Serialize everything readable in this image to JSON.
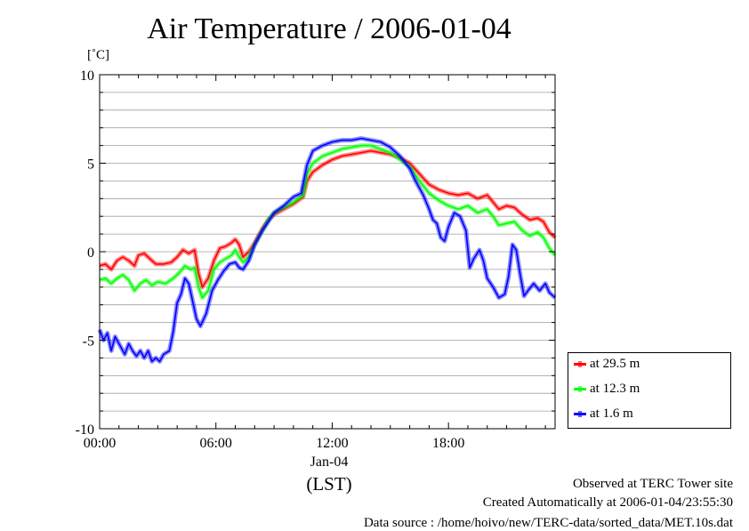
{
  "title": "Air Temperature / 2006-01-04",
  "unit_label": "[˚C]",
  "date_label": "Jan-04",
  "timezone_label": "(LST)",
  "footer": {
    "observed": "Observed at TERC Tower site",
    "created": "Created Automatically at 2006-01-04/23:55:30",
    "source": "Data source : /home/hoivo/new/TERC-data/sorted_data/MET.10s.dat"
  },
  "chart_data": {
    "type": "line",
    "title": "Air Temperature / 2006-01-04",
    "xlabel": "(LST)",
    "ylabel": "[˚C]",
    "ylim": [
      -10,
      10
    ],
    "xlim": [
      0,
      23.5
    ],
    "x_ticks": [
      {
        "value": 0,
        "label": "00:00"
      },
      {
        "value": 6,
        "label": "06:00"
      },
      {
        "value": 12,
        "label": "12:00"
      },
      {
        "value": 18,
        "label": "18:00"
      }
    ],
    "y_ticks": [
      {
        "value": 10,
        "label": "10"
      },
      {
        "value": 5,
        "label": "5"
      },
      {
        "value": 0,
        "label": "0"
      },
      {
        "value": -5,
        "label": "-5"
      },
      {
        "value": -10,
        "label": "-10"
      }
    ],
    "grid": true,
    "legend_position": "bottom-right outside",
    "series": [
      {
        "name": "at 29.5 m",
        "color": "#ff0000",
        "points": [
          [
            0,
            -0.8
          ],
          [
            0.3,
            -0.7
          ],
          [
            0.6,
            -1.0
          ],
          [
            0.9,
            -0.5
          ],
          [
            1.2,
            -0.3
          ],
          [
            1.5,
            -0.5
          ],
          [
            1.8,
            -0.8
          ],
          [
            2.0,
            -0.2
          ],
          [
            2.3,
            -0.1
          ],
          [
            2.6,
            -0.4
          ],
          [
            2.9,
            -0.7
          ],
          [
            3.3,
            -0.7
          ],
          [
            3.7,
            -0.6
          ],
          [
            4.0,
            -0.3
          ],
          [
            4.3,
            0.1
          ],
          [
            4.6,
            -0.1
          ],
          [
            4.9,
            0.1
          ],
          [
            5.1,
            -1.2
          ],
          [
            5.3,
            -2.0
          ],
          [
            5.6,
            -1.5
          ],
          [
            5.9,
            -0.5
          ],
          [
            6.2,
            0.2
          ],
          [
            6.5,
            0.3
          ],
          [
            6.8,
            0.5
          ],
          [
            7.0,
            0.7
          ],
          [
            7.2,
            0.4
          ],
          [
            7.4,
            -0.3
          ],
          [
            7.7,
            0
          ],
          [
            8.0,
            0.5
          ],
          [
            8.4,
            1.3
          ],
          [
            8.7,
            1.8
          ],
          [
            9.0,
            2.1
          ],
          [
            9.5,
            2.4
          ],
          [
            10.0,
            2.7
          ],
          [
            10.5,
            3.1
          ],
          [
            10.7,
            4.0
          ],
          [
            11.0,
            4.5
          ],
          [
            11.5,
            4.9
          ],
          [
            12.0,
            5.2
          ],
          [
            12.5,
            5.4
          ],
          [
            13.0,
            5.5
          ],
          [
            13.5,
            5.6
          ],
          [
            14.0,
            5.7
          ],
          [
            14.5,
            5.6
          ],
          [
            15.0,
            5.5
          ],
          [
            15.5,
            5.3
          ],
          [
            16.0,
            5.0
          ],
          [
            16.5,
            4.4
          ],
          [
            17.0,
            3.8
          ],
          [
            17.5,
            3.5
          ],
          [
            18.0,
            3.3
          ],
          [
            18.5,
            3.2
          ],
          [
            19.0,
            3.3
          ],
          [
            19.5,
            3.0
          ],
          [
            20.0,
            3.2
          ],
          [
            20.3,
            2.8
          ],
          [
            20.6,
            2.4
          ],
          [
            21.0,
            2.6
          ],
          [
            21.4,
            2.5
          ],
          [
            21.8,
            2.1
          ],
          [
            22.2,
            1.8
          ],
          [
            22.6,
            1.9
          ],
          [
            22.9,
            1.7
          ],
          [
            23.2,
            1.1
          ],
          [
            23.5,
            0.8
          ]
        ]
      },
      {
        "name": "at 12.3 m",
        "color": "#00ff00",
        "points": [
          [
            0,
            -1.6
          ],
          [
            0.3,
            -1.5
          ],
          [
            0.6,
            -1.8
          ],
          [
            0.9,
            -1.5
          ],
          [
            1.2,
            -1.3
          ],
          [
            1.5,
            -1.6
          ],
          [
            1.8,
            -2.2
          ],
          [
            2.1,
            -1.8
          ],
          [
            2.4,
            -1.6
          ],
          [
            2.7,
            -1.9
          ],
          [
            3.0,
            -1.7
          ],
          [
            3.4,
            -1.8
          ],
          [
            3.8,
            -1.5
          ],
          [
            4.1,
            -1.2
          ],
          [
            4.4,
            -0.8
          ],
          [
            4.7,
            -1.0
          ],
          [
            4.9,
            -0.9
          ],
          [
            5.1,
            -2.0
          ],
          [
            5.3,
            -2.6
          ],
          [
            5.6,
            -2.2
          ],
          [
            5.9,
            -1.0
          ],
          [
            6.2,
            -0.6
          ],
          [
            6.5,
            -0.4
          ],
          [
            6.8,
            -0.2
          ],
          [
            7.0,
            0.1
          ],
          [
            7.2,
            -0.3
          ],
          [
            7.4,
            -0.6
          ],
          [
            7.7,
            -0.3
          ],
          [
            8.0,
            0.4
          ],
          [
            8.4,
            1.2
          ],
          [
            8.7,
            1.8
          ],
          [
            9.0,
            2.2
          ],
          [
            9.5,
            2.5
          ],
          [
            10.0,
            2.8
          ],
          [
            10.5,
            3.2
          ],
          [
            10.7,
            4.4
          ],
          [
            11.0,
            5.0
          ],
          [
            11.5,
            5.4
          ],
          [
            12.0,
            5.6
          ],
          [
            12.5,
            5.8
          ],
          [
            13.0,
            5.9
          ],
          [
            13.5,
            6.0
          ],
          [
            14.0,
            6.0
          ],
          [
            14.5,
            5.8
          ],
          [
            15.0,
            5.6
          ],
          [
            15.5,
            5.2
          ],
          [
            16.0,
            4.8
          ],
          [
            16.5,
            4.0
          ],
          [
            17.0,
            3.3
          ],
          [
            17.5,
            2.9
          ],
          [
            18.0,
            2.6
          ],
          [
            18.5,
            2.4
          ],
          [
            19.0,
            2.6
          ],
          [
            19.5,
            2.2
          ],
          [
            20.0,
            2.4
          ],
          [
            20.3,
            2.0
          ],
          [
            20.6,
            1.5
          ],
          [
            21.0,
            1.6
          ],
          [
            21.4,
            1.7
          ],
          [
            21.8,
            1.2
          ],
          [
            22.2,
            0.9
          ],
          [
            22.6,
            1.1
          ],
          [
            22.9,
            0.8
          ],
          [
            23.2,
            0.2
          ],
          [
            23.5,
            -0.2
          ]
        ]
      },
      {
        "name": "at 1.6 m",
        "color": "#0000ff",
        "points": [
          [
            0,
            -4.4
          ],
          [
            0.2,
            -5.0
          ],
          [
            0.4,
            -4.6
          ],
          [
            0.6,
            -5.6
          ],
          [
            0.8,
            -4.8
          ],
          [
            1.0,
            -5.2
          ],
          [
            1.3,
            -5.8
          ],
          [
            1.5,
            -5.2
          ],
          [
            1.7,
            -5.6
          ],
          [
            1.9,
            -5.9
          ],
          [
            2.1,
            -5.6
          ],
          [
            2.3,
            -6.0
          ],
          [
            2.5,
            -5.6
          ],
          [
            2.7,
            -6.2
          ],
          [
            2.9,
            -6.0
          ],
          [
            3.1,
            -6.2
          ],
          [
            3.3,
            -5.8
          ],
          [
            3.6,
            -5.6
          ],
          [
            3.8,
            -4.5
          ],
          [
            4.0,
            -2.9
          ],
          [
            4.2,
            -2.4
          ],
          [
            4.4,
            -1.5
          ],
          [
            4.6,
            -1.8
          ],
          [
            4.8,
            -2.8
          ],
          [
            5.0,
            -3.8
          ],
          [
            5.2,
            -4.2
          ],
          [
            5.5,
            -3.5
          ],
          [
            5.8,
            -2.2
          ],
          [
            6.1,
            -1.6
          ],
          [
            6.4,
            -1.1
          ],
          [
            6.7,
            -0.7
          ],
          [
            7.0,
            -0.6
          ],
          [
            7.2,
            -0.9
          ],
          [
            7.4,
            -1.0
          ],
          [
            7.7,
            -0.5
          ],
          [
            8.0,
            0.4
          ],
          [
            8.4,
            1.2
          ],
          [
            8.7,
            1.7
          ],
          [
            9.0,
            2.2
          ],
          [
            9.5,
            2.6
          ],
          [
            10.0,
            3.1
          ],
          [
            10.4,
            3.3
          ],
          [
            10.7,
            4.9
          ],
          [
            11.0,
            5.7
          ],
          [
            11.5,
            6.0
          ],
          [
            12.0,
            6.2
          ],
          [
            12.5,
            6.3
          ],
          [
            13.0,
            6.3
          ],
          [
            13.5,
            6.4
          ],
          [
            14.0,
            6.3
          ],
          [
            14.5,
            6.2
          ],
          [
            15.0,
            5.9
          ],
          [
            15.5,
            5.4
          ],
          [
            16.0,
            4.7
          ],
          [
            16.3,
            4.0
          ],
          [
            16.7,
            3.2
          ],
          [
            17.0,
            2.4
          ],
          [
            17.2,
            1.8
          ],
          [
            17.4,
            1.6
          ],
          [
            17.6,
            0.8
          ],
          [
            17.8,
            0.6
          ],
          [
            18.0,
            1.4
          ],
          [
            18.3,
            2.2
          ],
          [
            18.6,
            2.0
          ],
          [
            18.9,
            1.2
          ],
          [
            19.1,
            -0.9
          ],
          [
            19.3,
            -0.4
          ],
          [
            19.6,
            0.1
          ],
          [
            19.8,
            -0.5
          ],
          [
            20.0,
            -1.5
          ],
          [
            20.3,
            -2.0
          ],
          [
            20.6,
            -2.6
          ],
          [
            20.9,
            -2.4
          ],
          [
            21.1,
            -1.4
          ],
          [
            21.3,
            0.4
          ],
          [
            21.5,
            0.1
          ],
          [
            21.7,
            -1.3
          ],
          [
            21.9,
            -2.5
          ],
          [
            22.1,
            -2.2
          ],
          [
            22.4,
            -1.8
          ],
          [
            22.7,
            -2.2
          ],
          [
            23.0,
            -1.8
          ],
          [
            23.2,
            -2.3
          ],
          [
            23.5,
            -2.6
          ]
        ]
      }
    ]
  }
}
